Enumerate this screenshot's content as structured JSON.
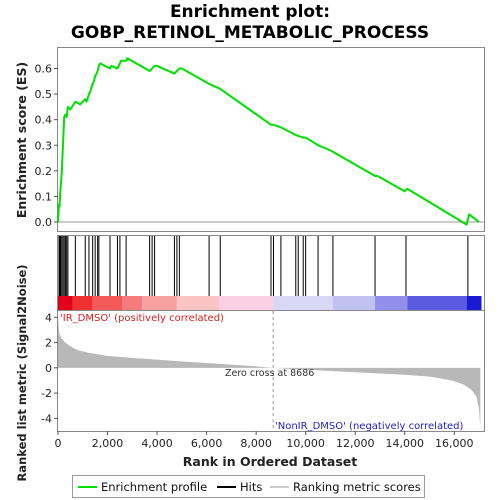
{
  "chart_data": {
    "type": "line",
    "title_line1": "Enrichment plot:",
    "title_line2": "GOBP_RETINOL_METABOLIC_PROCESS",
    "top_panel": {
      "ylabel": "Enrichment score (ES)",
      "ylim": [
        -0.035,
        0.68
      ],
      "yticks": [
        "0.0",
        "0.1",
        "0.2",
        "0.3",
        "0.4",
        "0.5",
        "0.6"
      ],
      "series": [
        {
          "name": "Enrichment profile",
          "color": "#00e000",
          "x": [
            0,
            40,
            60,
            100,
            150,
            200,
            250,
            300,
            350,
            400,
            500,
            700,
            900,
            1100,
            1150,
            1250,
            1300,
            1400,
            1450,
            1500,
            1600,
            1650,
            1700,
            2100,
            2150,
            2400,
            2500,
            2550,
            2750,
            2800,
            3700,
            3800,
            3900,
            4000,
            4700,
            4800,
            4900,
            5000,
            6100,
            6550,
            8600,
            8700,
            9000,
            9600,
            9900,
            10000,
            10500,
            11000,
            12800,
            12900,
            14000,
            14100,
            16500,
            16600,
            17000
          ],
          "y": [
            0.0,
            0.07,
            0.06,
            0.13,
            0.19,
            0.3,
            0.41,
            0.42,
            0.41,
            0.45,
            0.44,
            0.47,
            0.46,
            0.48,
            0.47,
            0.5,
            0.51,
            0.54,
            0.55,
            0.57,
            0.59,
            0.61,
            0.62,
            0.6,
            0.61,
            0.6,
            0.62,
            0.63,
            0.63,
            0.64,
            0.59,
            0.6,
            0.61,
            0.61,
            0.58,
            0.59,
            0.6,
            0.6,
            0.54,
            0.52,
            0.38,
            0.38,
            0.37,
            0.34,
            0.33,
            0.33,
            0.3,
            0.28,
            0.18,
            0.18,
            0.12,
            0.13,
            -0.01,
            0.03,
            0.0
          ]
        }
      ]
    },
    "hits": [
      40,
      60,
      100,
      150,
      200,
      250,
      300,
      350,
      400,
      700,
      1100,
      1250,
      1400,
      1500,
      1600,
      1650,
      2100,
      2400,
      2500,
      2750,
      3700,
      3800,
      3900,
      4700,
      4800,
      4900,
      6100,
      6550,
      8600,
      8700,
      9000,
      9600,
      9700,
      9900,
      10000,
      10500,
      11100,
      12800,
      14050,
      16550
    ],
    "bottom_panel": {
      "ylabel": "Ranked list metric (Signal2Noise)",
      "ylim": [
        -5,
        4.5
      ],
      "yticks": [
        "4",
        "2",
        "0",
        "-2",
        "-4"
      ],
      "fill_color": "#b8b8b8",
      "x": [
        0,
        50,
        150,
        300,
        500,
        800,
        1200,
        2000,
        3000,
        4000,
        5000,
        6000,
        7000,
        8000,
        8686,
        10000,
        11000,
        12000,
        13000,
        14000,
        15000,
        15500,
        16000,
        16400,
        16700,
        16900,
        17000,
        17050
      ],
      "y": [
        4.0,
        2.7,
        2.3,
        2.0,
        1.7,
        1.4,
        1.2,
        0.95,
        0.78,
        0.65,
        0.5,
        0.38,
        0.25,
        0.12,
        0.0,
        -0.15,
        -0.25,
        -0.35,
        -0.45,
        -0.55,
        -0.7,
        -0.85,
        -1.05,
        -1.35,
        -1.75,
        -2.3,
        -3.3,
        -4.7
      ]
    },
    "xlabel": "Rank in Ordered Dataset",
    "xlim": [
      0,
      17200
    ],
    "xticks": [
      "0",
      "2,000",
      "4,000",
      "6,000",
      "8,000",
      "10,000",
      "12,000",
      "14,000",
      "16,000"
    ],
    "zero_cross": 8686,
    "annotations": {
      "positive": "'IR_DMSO' (positively correlated)",
      "negative": "'NonIR_DMSO' (negatively correlated)",
      "zero_cross": "Zero cross at 8686"
    },
    "heatmap_segments": [
      {
        "start": 0,
        "end": 600,
        "color": "#e4001a"
      },
      {
        "start": 600,
        "end": 1400,
        "color": "#ee3030"
      },
      {
        "start": 1400,
        "end": 2600,
        "color": "#f25a5a"
      },
      {
        "start": 2600,
        "end": 3400,
        "color": "#f47c7c"
      },
      {
        "start": 3400,
        "end": 4800,
        "color": "#f7a0a0"
      },
      {
        "start": 4800,
        "end": 6500,
        "color": "#fac4c4"
      },
      {
        "start": 6500,
        "end": 8686,
        "color": "#fbd0e4"
      },
      {
        "start": 8686,
        "end": 11100,
        "color": "#d8d8f4"
      },
      {
        "start": 11100,
        "end": 12800,
        "color": "#c2c2f0"
      },
      {
        "start": 12800,
        "end": 14100,
        "color": "#9090ea"
      },
      {
        "start": 14100,
        "end": 16500,
        "color": "#5b5be0"
      },
      {
        "start": 16500,
        "end": 17100,
        "color": "#1a1ad0"
      }
    ],
    "legend": [
      {
        "label": "Enrichment profile",
        "kind": "line",
        "color": "#00e000"
      },
      {
        "label": "Hits",
        "kind": "line",
        "color": "#000000"
      },
      {
        "label": "Ranking metric scores",
        "kind": "line",
        "color": "#cccccc"
      }
    ]
  }
}
